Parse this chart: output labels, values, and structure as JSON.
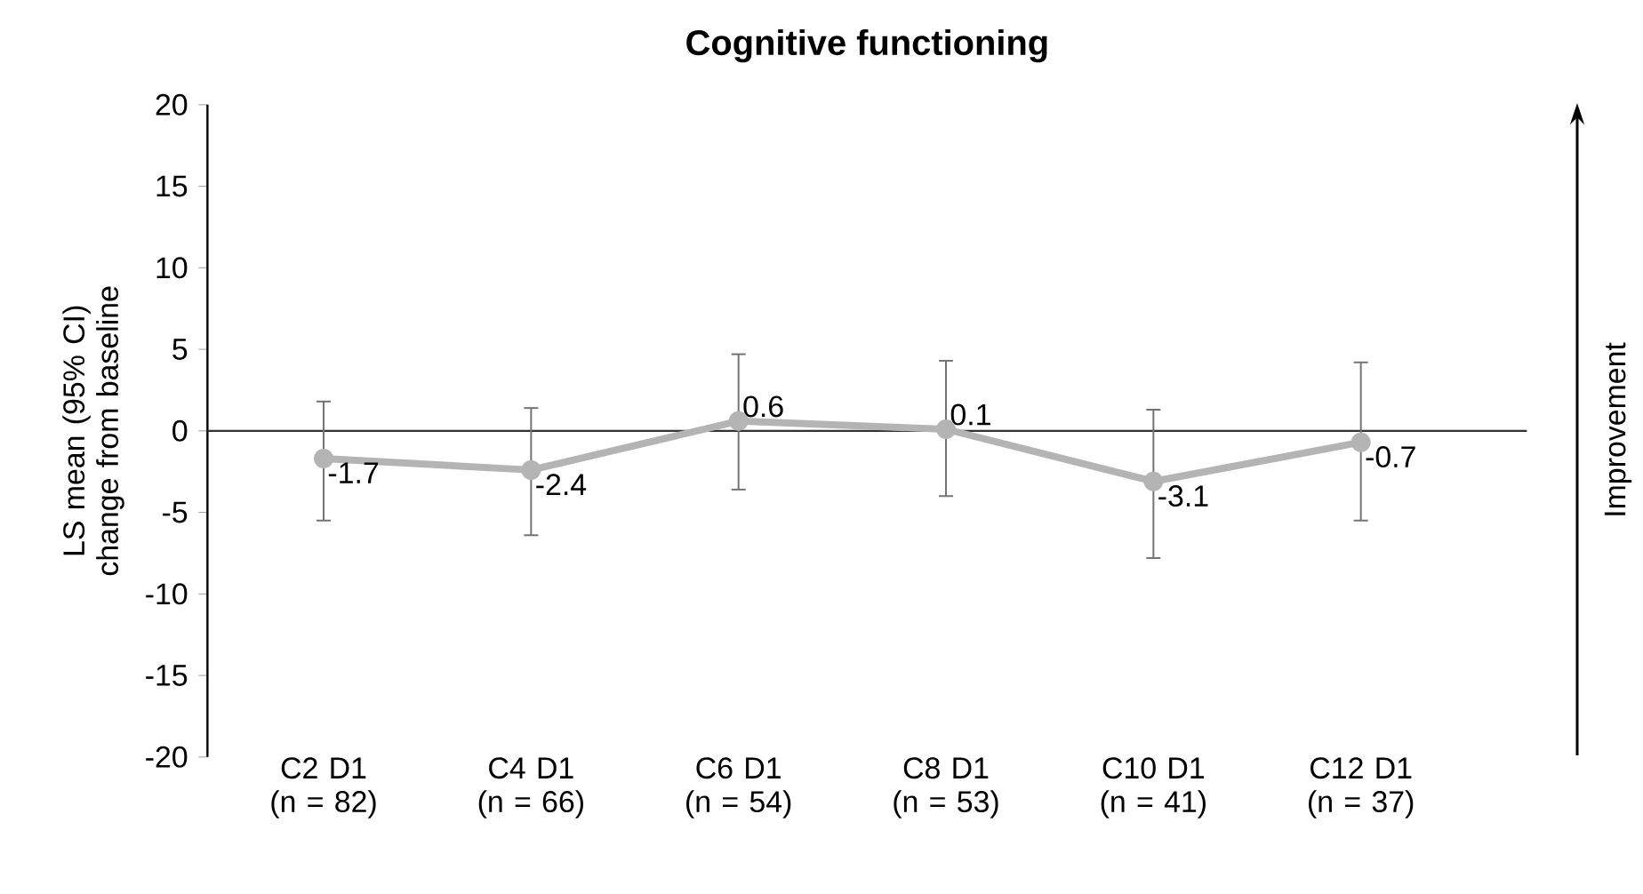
{
  "chart_data": {
    "type": "line",
    "title": "Cognitive functioning",
    "ylabel": "LS mean (95% CI) change from baseline",
    "categories": [
      "C2 D1 (n = 82)",
      "C4 D1 (n = 66)",
      "C6 D1 (n = 54)",
      "C8 D1 (n = 53)",
      "C10 D1 (n = 41)",
      "C12 D1 (n = 37)"
    ],
    "series": [
      {
        "color": "#b4b4b4",
        "values": [
          -1.7,
          -2.4,
          0.6,
          0.1,
          -3.1,
          -0.7
        ],
        "errors": [
          [
            -5.5,
            1.8
          ],
          [
            -6.4,
            1.4
          ],
          [
            -3.6,
            4.7
          ],
          [
            -4.0,
            4.3
          ],
          [
            -7.8,
            1.3
          ],
          [
            -5.5,
            4.2
          ]
        ]
      }
    ],
    "ylim": [
      -20,
      20
    ],
    "yticks": [
      -20,
      -15,
      -10,
      -5,
      0,
      5,
      10,
      15,
      20
    ],
    "ref_lines": [
      {
        "axis": "y",
        "value": 0,
        "color": "#333333"
      }
    ],
    "annotations": [
      "Improvement"
    ],
    "data_labels": true,
    "marker": "circle",
    "line_style": "solid"
  }
}
